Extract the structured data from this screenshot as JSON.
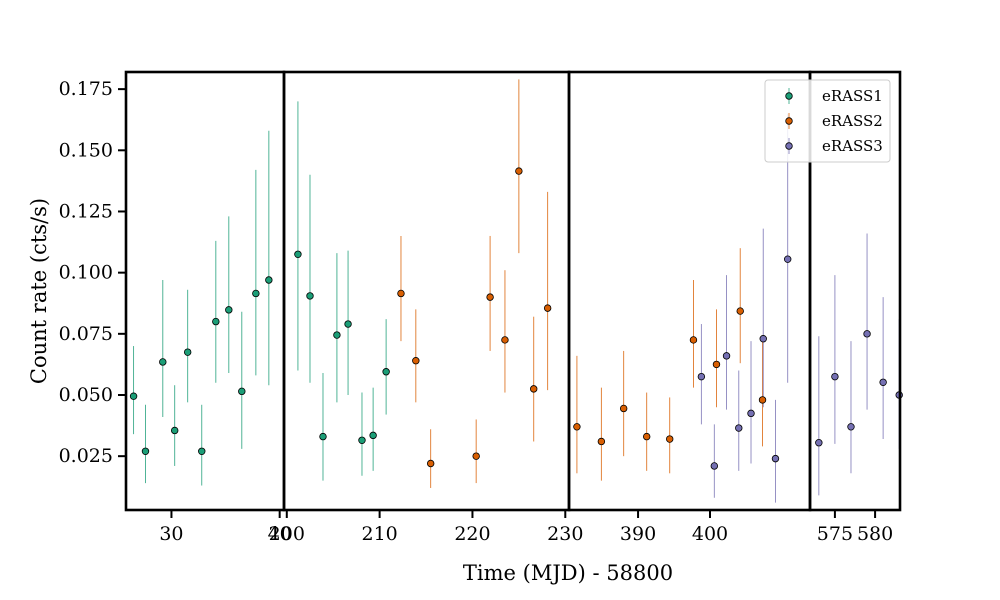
{
  "chart_data": {
    "type": "scatter",
    "xlabel": "Time (MJD) - 58800",
    "ylabel": "Count rate (cts/s)",
    "ylim": [
      0.003,
      0.182
    ],
    "y_ticks": [
      "0.025",
      "0.050",
      "0.075",
      "0.100",
      "0.125",
      "0.150",
      "0.175"
    ],
    "y_tick_values": [
      0.025,
      0.05,
      0.075,
      0.1,
      0.125,
      0.15,
      0.175
    ],
    "legend_position": "top-right",
    "error_bars": true,
    "panels": [
      {
        "xlim": [
          25.8,
          40.4
        ],
        "x_ticks": [
          "30",
          "40"
        ],
        "x_tick_values": [
          30,
          40
        ]
      },
      {
        "xlim": [
          199.7,
          230.4
        ],
        "x_ticks": [
          "200",
          "210",
          "220",
          "230"
        ],
        "x_tick_values": [
          200,
          210,
          220,
          230
        ]
      },
      {
        "xlim": [
          380.4,
          413.9
        ],
        "x_ticks": [
          "390",
          "400"
        ],
        "x_tick_values": [
          390,
          400
        ]
      },
      {
        "xlim": [
          571.9,
          583.1
        ],
        "x_ticks": [
          "575",
          "580"
        ],
        "x_tick_values": [
          575,
          580
        ]
      }
    ],
    "series": [
      {
        "name": "eRASS1",
        "color": "#1b9e77",
        "points": [
          {
            "panel": 0,
            "x": 26.5,
            "y": 0.0495,
            "lo": 0.034,
            "hi": 0.07
          },
          {
            "panel": 0,
            "x": 27.6,
            "y": 0.027,
            "lo": 0.014,
            "hi": 0.046
          },
          {
            "panel": 0,
            "x": 29.2,
            "y": 0.0635,
            "lo": 0.041,
            "hi": 0.097
          },
          {
            "panel": 0,
            "x": 30.3,
            "y": 0.0355,
            "lo": 0.021,
            "hi": 0.054
          },
          {
            "panel": 0,
            "x": 31.5,
            "y": 0.0675,
            "lo": 0.047,
            "hi": 0.093
          },
          {
            "panel": 0,
            "x": 32.8,
            "y": 0.027,
            "lo": 0.013,
            "hi": 0.046
          },
          {
            "panel": 0,
            "x": 34.1,
            "y": 0.08,
            "lo": 0.055,
            "hi": 0.113
          },
          {
            "panel": 0,
            "x": 35.3,
            "y": 0.0848,
            "lo": 0.059,
            "hi": 0.123
          },
          {
            "panel": 0,
            "x": 36.5,
            "y": 0.0515,
            "lo": 0.028,
            "hi": 0.084
          },
          {
            "panel": 0,
            "x": 37.8,
            "y": 0.0915,
            "lo": 0.058,
            "hi": 0.142
          },
          {
            "panel": 0,
            "x": 39.0,
            "y": 0.097,
            "lo": 0.054,
            "hi": 0.158
          },
          {
            "panel": 1,
            "x": 201.2,
            "y": 0.1075,
            "lo": 0.06,
            "hi": 0.17
          },
          {
            "panel": 1,
            "x": 202.5,
            "y": 0.0905,
            "lo": 0.055,
            "hi": 0.14
          },
          {
            "panel": 1,
            "x": 203.9,
            "y": 0.033,
            "lo": 0.015,
            "hi": 0.059
          },
          {
            "panel": 1,
            "x": 205.4,
            "y": 0.0745,
            "lo": 0.047,
            "hi": 0.108
          },
          {
            "panel": 1,
            "x": 206.6,
            "y": 0.079,
            "lo": 0.05,
            "hi": 0.109
          },
          {
            "panel": 1,
            "x": 208.1,
            "y": 0.0315,
            "lo": 0.017,
            "hi": 0.051
          },
          {
            "panel": 1,
            "x": 209.3,
            "y": 0.0335,
            "lo": 0.019,
            "hi": 0.053
          },
          {
            "panel": 1,
            "x": 210.7,
            "y": 0.0595,
            "lo": 0.042,
            "hi": 0.081
          }
        ]
      },
      {
        "name": "eRASS2",
        "color": "#d95f02",
        "points": [
          {
            "panel": 1,
            "x": 212.3,
            "y": 0.0915,
            "lo": 0.072,
            "hi": 0.115
          },
          {
            "panel": 1,
            "x": 213.9,
            "y": 0.064,
            "lo": 0.047,
            "hi": 0.085
          },
          {
            "panel": 1,
            "x": 215.5,
            "y": 0.022,
            "lo": 0.012,
            "hi": 0.036
          },
          {
            "panel": 1,
            "x": 220.4,
            "y": 0.025,
            "lo": 0.014,
            "hi": 0.04
          },
          {
            "panel": 1,
            "x": 221.9,
            "y": 0.09,
            "lo": 0.068,
            "hi": 0.115
          },
          {
            "panel": 1,
            "x": 223.5,
            "y": 0.0725,
            "lo": 0.051,
            "hi": 0.101
          },
          {
            "panel": 1,
            "x": 225.0,
            "y": 0.1415,
            "lo": 0.108,
            "hi": 0.179
          },
          {
            "panel": 1,
            "x": 226.6,
            "y": 0.0525,
            "lo": 0.031,
            "hi": 0.082
          },
          {
            "panel": 1,
            "x": 228.1,
            "y": 0.0855,
            "lo": 0.052,
            "hi": 0.133
          },
          {
            "panel": 2,
            "x": 381.5,
            "y": 0.037,
            "lo": 0.018,
            "hi": 0.066
          },
          {
            "panel": 2,
            "x": 384.9,
            "y": 0.031,
            "lo": 0.015,
            "hi": 0.053
          },
          {
            "panel": 2,
            "x": 388.0,
            "y": 0.0445,
            "lo": 0.025,
            "hi": 0.068
          },
          {
            "panel": 2,
            "x": 391.2,
            "y": 0.033,
            "lo": 0.019,
            "hi": 0.051
          },
          {
            "panel": 2,
            "x": 394.4,
            "y": 0.032,
            "lo": 0.018,
            "hi": 0.049
          },
          {
            "panel": 2,
            "x": 397.7,
            "y": 0.0725,
            "lo": 0.053,
            "hi": 0.097
          },
          {
            "panel": 2,
            "x": 400.9,
            "y": 0.0625,
            "lo": 0.045,
            "hi": 0.085
          },
          {
            "panel": 2,
            "x": 404.2,
            "y": 0.0843,
            "lo": 0.063,
            "hi": 0.11
          },
          {
            "panel": 2,
            "x": 407.3,
            "y": 0.048,
            "lo": 0.029,
            "hi": 0.073
          }
        ]
      },
      {
        "name": "eRASS3",
        "color": "#7570b3",
        "points": [
          {
            "panel": 2,
            "x": 398.8,
            "y": 0.0575,
            "lo": 0.038,
            "hi": 0.079
          },
          {
            "panel": 2,
            "x": 400.6,
            "y": 0.021,
            "lo": 0.008,
            "hi": 0.038
          },
          {
            "panel": 2,
            "x": 402.3,
            "y": 0.066,
            "lo": 0.044,
            "hi": 0.099
          },
          {
            "panel": 2,
            "x": 404.0,
            "y": 0.0365,
            "lo": 0.019,
            "hi": 0.06
          },
          {
            "panel": 2,
            "x": 405.7,
            "y": 0.0425,
            "lo": 0.022,
            "hi": 0.072
          },
          {
            "panel": 2,
            "x": 407.4,
            "y": 0.073,
            "lo": 0.045,
            "hi": 0.118
          },
          {
            "panel": 2,
            "x": 409.1,
            "y": 0.024,
            "lo": 0.006,
            "hi": 0.048
          },
          {
            "panel": 2,
            "x": 410.8,
            "y": 0.1055,
            "lo": 0.055,
            "hi": 0.165
          },
          {
            "panel": 3,
            "x": 573.0,
            "y": 0.0305,
            "lo": 0.009,
            "hi": 0.074
          },
          {
            "panel": 3,
            "x": 575.0,
            "y": 0.0575,
            "lo": 0.03,
            "hi": 0.099
          },
          {
            "panel": 3,
            "x": 577.0,
            "y": 0.037,
            "lo": 0.018,
            "hi": 0.072
          },
          {
            "panel": 3,
            "x": 579.0,
            "y": 0.075,
            "lo": 0.044,
            "hi": 0.116
          },
          {
            "panel": 3,
            "x": 581.0,
            "y": 0.0552,
            "lo": 0.032,
            "hi": 0.09
          },
          {
            "panel": 3,
            "x": 583.0,
            "y": 0.05,
            "lo": 0.028,
            "hi": 0.081
          }
        ]
      }
    ]
  }
}
